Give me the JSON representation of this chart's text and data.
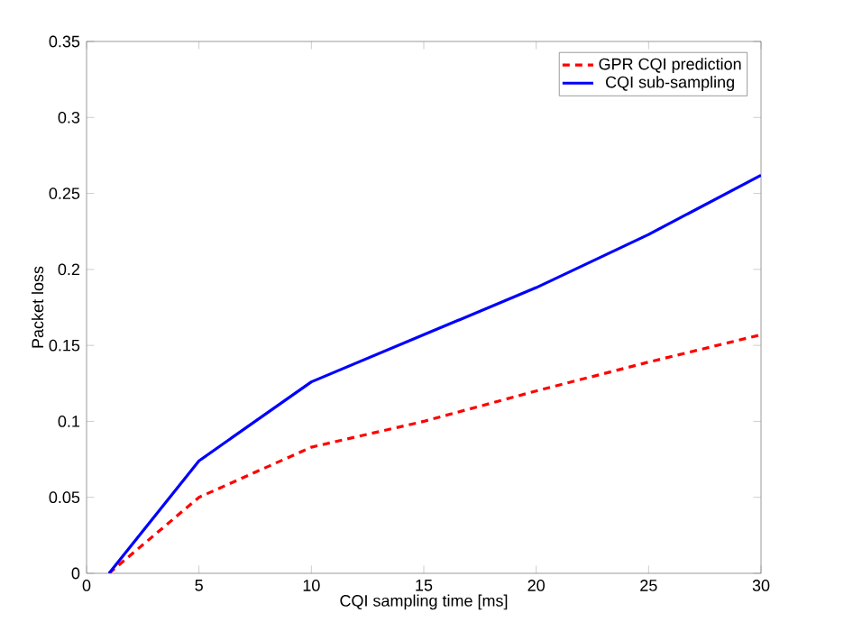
{
  "chart_data": {
    "type": "line",
    "xlabel": "CQI sampling time [ms]",
    "ylabel": "Packet loss",
    "xlim": [
      0,
      30
    ],
    "ylim": [
      0,
      0.35
    ],
    "xticks": [
      0,
      5,
      10,
      15,
      20,
      25,
      30
    ],
    "yticks": [
      0,
      0.05,
      0.1,
      0.15,
      0.2,
      0.25,
      0.3,
      0.35
    ],
    "legend": "top right",
    "grid": false,
    "series": [
      {
        "name": "GPR CQI prediction",
        "color": "#ff0000",
        "line_style": "dashed",
        "x": [
          1,
          5,
          10,
          15,
          20,
          25,
          30
        ],
        "values": [
          0,
          0.05,
          0.083,
          0.1,
          0.12,
          0.139,
          0.157
        ]
      },
      {
        "name": "CQI sub-sampling",
        "color": "#0000ff",
        "line_style": "solid",
        "x": [
          1,
          5,
          10,
          15,
          20,
          25,
          30
        ],
        "values": [
          0,
          0.074,
          0.126,
          0.157,
          0.188,
          0.223,
          0.262
        ]
      }
    ]
  }
}
